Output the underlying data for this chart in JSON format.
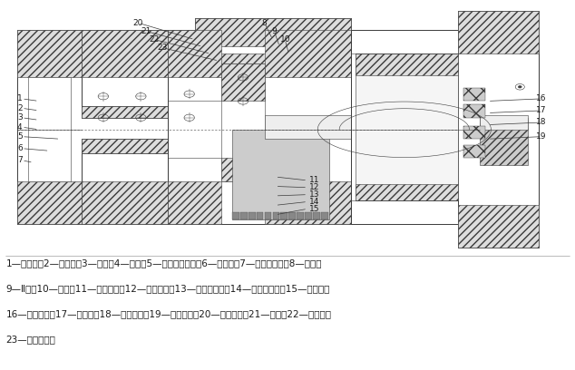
{
  "figure_width": 6.34,
  "figure_height": 4.08,
  "dpi": 100,
  "bg_color": "#ffffff",
  "caption_lines": [
    "1—工作台；2—齿圈座；3—齿圈；4—压环；5—交叉滚子轴承；6—法兰盘；7—工作台底座；8—齿轮；",
    "9—Ⅱ轴；10—立柱；11—联组皮带；12—大皮带轮；13—卸荷法兰盘；14—深沟球轴承；15—花键套；",
    "16—主电动机；17—减速器；18—电动机座；19—小皮带轮；20—上法兰盘；21—小轴；22—编码器；",
    "23—下法兰盘。"
  ],
  "caption_fontsize": 7.5,
  "line_color": "#3a3a3a",
  "text_color": "#1a1a1a",
  "label_fontsize": 6.5
}
